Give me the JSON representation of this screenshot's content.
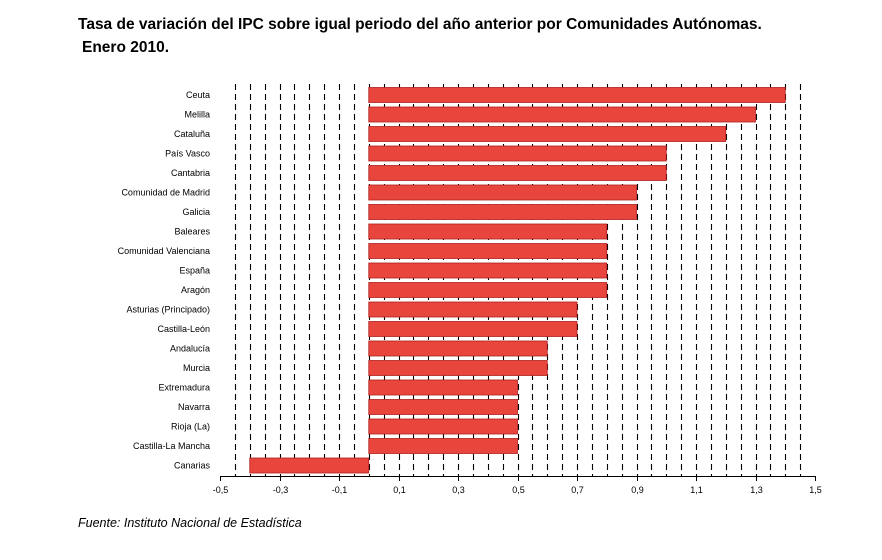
{
  "page": {
    "title": "Tasa de variación del IPC sobre igual periodo del año anterior por Comunidades Autónomas.",
    "subtitle": "Enero 2010.",
    "source": "Fuente: Instituto Nacional de Estadística"
  },
  "chart_data": {
    "type": "bar",
    "orientation": "horizontal",
    "title": "Tasa de variación del IPC sobre igual periodo del año anterior por Comunidades Autónomas.",
    "subtitle": "Enero 2010.",
    "xlabel": "",
    "ylabel": "",
    "categories": [
      "Ceuta",
      "Melilla",
      "Cataluña",
      "País Vasco",
      "Cantabria",
      "Comunidad de Madrid",
      "Galicia",
      "Baleares",
      "Comunidad Valenciana",
      "España",
      "Aragón",
      "Asturias (Principado)",
      "Castilla-León",
      "Andalucía",
      "Murcia",
      "Extremadura",
      "Navarra",
      "Rioja (La)",
      "Castilla-La Mancha",
      "Canarias"
    ],
    "values": [
      1.4,
      1.3,
      1.2,
      1.0,
      1.0,
      0.9,
      0.9,
      0.8,
      0.8,
      0.8,
      0.8,
      0.7,
      0.7,
      0.6,
      0.6,
      0.5,
      0.5,
      0.5,
      0.5,
      -0.4
    ],
    "xlim": [
      -0.5,
      1.5
    ],
    "xticks": [
      -0.5,
      -0.3,
      -0.1,
      0.1,
      0.3,
      0.5,
      0.7,
      0.9,
      1.1,
      1.3,
      1.5
    ],
    "xtick_labels": [
      "-0,5",
      "-0,3",
      "-0,1",
      "0,1",
      "0,3",
      "0,5",
      "0,7",
      "0,9",
      "1,1",
      "1,3",
      "1,5"
    ],
    "grid_step": 0.05,
    "grid": "vertical dashed",
    "bar_color": "#e8453c",
    "bar_border_color": "#b02020"
  }
}
